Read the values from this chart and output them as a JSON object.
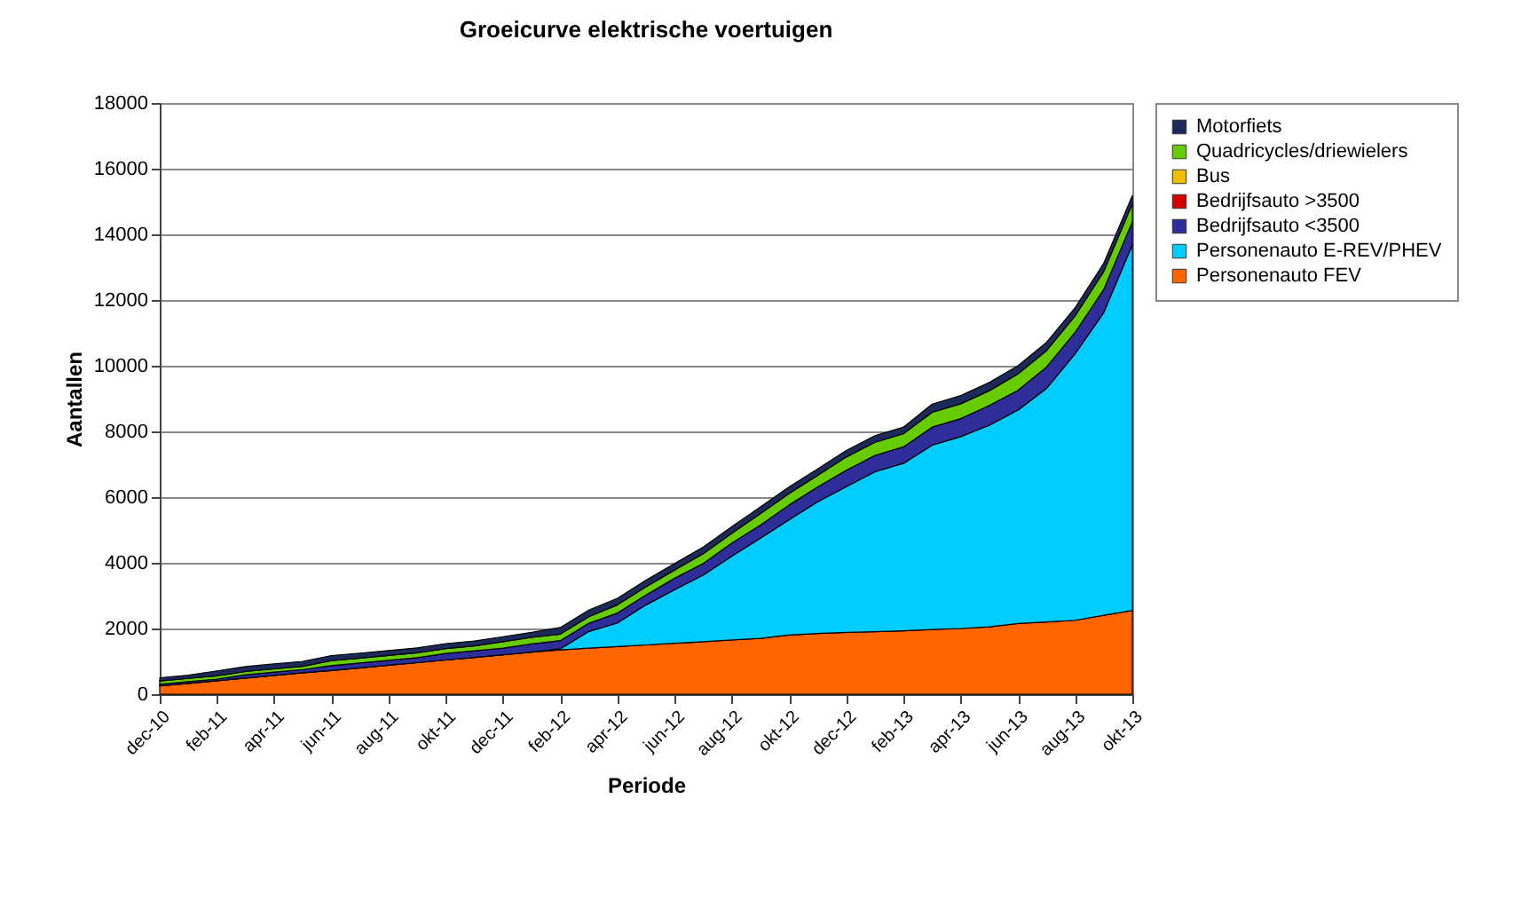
{
  "chart_data": {
    "type": "area",
    "title": "Groeicurve elektrische voertuigen",
    "xlabel": "Periode",
    "ylabel": "Aantallen",
    "categories": [
      "dec-10",
      null,
      "feb-11",
      null,
      "apr-11",
      null,
      "jun-11",
      null,
      "aug-11",
      null,
      "okt-11",
      null,
      "dec-11",
      null,
      "feb-12",
      null,
      "apr-12",
      null,
      "jun-12",
      null,
      "aug-12",
      null,
      "okt-12",
      null,
      "dec-12",
      null,
      "feb-13",
      null,
      "apr-13",
      null,
      "jun-13",
      null,
      "aug-13",
      null,
      "okt-13"
    ],
    "stacked": true,
    "ylim": [
      0,
      18000
    ],
    "yticks": [
      0,
      2000,
      4000,
      6000,
      8000,
      10000,
      12000,
      14000,
      16000,
      18000
    ],
    "grid": "y",
    "legend": "right",
    "series": [
      {
        "name": "Personenauto FEV",
        "color": "#ff6600",
        "values": [
          250,
          330,
          410,
          490,
          570,
          650,
          720,
          800,
          880,
          960,
          1040,
          1120,
          1200,
          1280,
          1350,
          1400,
          1450,
          1500,
          1550,
          1600,
          1650,
          1700,
          1800,
          1850,
          1880,
          1900,
          1930,
          1970,
          2000,
          2050,
          2150,
          2200,
          2250,
          2400,
          2550
        ]
      },
      {
        "name": "Personenauto E-REV/PHEV",
        "color": "#00ccff",
        "values": [
          0,
          0,
          0,
          0,
          0,
          0,
          0,
          0,
          0,
          0,
          0,
          0,
          0,
          0,
          30,
          510,
          720,
          1220,
          1630,
          2030,
          2550,
          3050,
          3510,
          4010,
          4440,
          4870,
          5100,
          5610,
          5840,
          6140,
          6500,
          7110,
          8120,
          9220,
          11130
        ]
      },
      {
        "name": "Bedrijfsauto <3500",
        "color": "#2e2e9a",
        "values": [
          50,
          50,
          50,
          100,
          100,
          100,
          150,
          150,
          150,
          150,
          200,
          200,
          200,
          250,
          250,
          250,
          300,
          300,
          350,
          350,
          400,
          400,
          450,
          450,
          500,
          500,
          500,
          550,
          550,
          600,
          600,
          650,
          650,
          700,
          700
        ]
      },
      {
        "name": "Bedrijfsauto >3500",
        "color": "#d40000",
        "values": [
          null,
          null,
          null,
          null,
          null,
          null,
          null,
          null,
          null,
          null,
          null,
          null,
          null,
          null,
          null,
          null,
          null,
          null,
          null,
          null,
          null,
          null,
          null,
          null,
          null,
          null,
          null,
          null,
          null,
          null,
          null,
          null,
          null,
          null,
          null
        ]
      },
      {
        "name": "Bus",
        "color": "#f0c000",
        "values": [
          null,
          null,
          null,
          null,
          null,
          null,
          null,
          null,
          null,
          null,
          null,
          null,
          null,
          null,
          null,
          null,
          null,
          null,
          null,
          null,
          null,
          null,
          null,
          null,
          null,
          null,
          null,
          null,
          null,
          null,
          null,
          null,
          null,
          null,
          null
        ]
      },
      {
        "name": "Quadricycles/driewielers",
        "color": "#66cc00",
        "values": [
          100,
          100,
          100,
          100,
          100,
          100,
          150,
          150,
          150,
          150,
          150,
          150,
          200,
          200,
          200,
          200,
          250,
          250,
          250,
          300,
          300,
          350,
          350,
          350,
          400,
          400,
          400,
          450,
          450,
          450,
          500,
          500,
          500,
          550,
          550
        ]
      },
      {
        "name": "Motorfiets",
        "color": "#1c2a5a",
        "values": [
          100,
          100,
          150,
          150,
          150,
          150,
          150,
          150,
          150,
          150,
          150,
          150,
          150,
          150,
          200,
          200,
          200,
          200,
          200,
          200,
          200,
          200,
          200,
          200,
          200,
          200,
          200,
          250,
          250,
          250,
          250,
          250,
          250,
          250,
          250
        ]
      }
    ]
  }
}
